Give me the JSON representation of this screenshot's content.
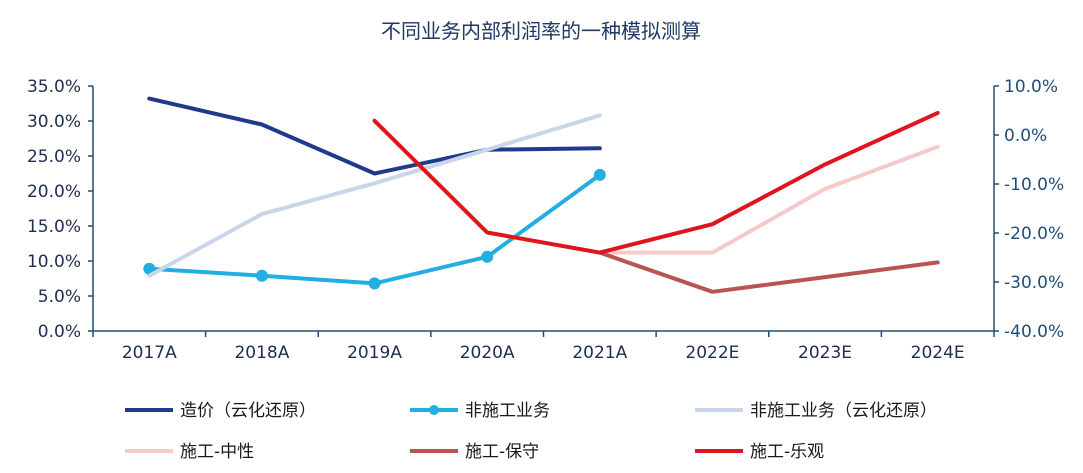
{
  "chart_data": {
    "type": "line",
    "title": "不同业务内部利润率的一种模拟测算",
    "categories": [
      "2017A",
      "2018A",
      "2019A",
      "2020A",
      "2021A",
      "2022E",
      "2023E",
      "2024E"
    ],
    "y_left": {
      "range": [
        0,
        35
      ],
      "ticks": [
        0,
        5,
        10,
        15,
        20,
        25,
        30,
        35
      ],
      "tick_labels": [
        "0.0%",
        "5.0%",
        "10.0%",
        "15.0%",
        "20.0%",
        "25.0%",
        "30.0%",
        "35.0%"
      ]
    },
    "y_right": {
      "range": [
        -40,
        10
      ],
      "ticks": [
        -40,
        -30,
        -20,
        -10,
        0,
        10
      ],
      "tick_labels": [
        "-40.0%",
        "-30.0%",
        "-20.0%",
        "-10.0%",
        "0.0%",
        "10.0%"
      ]
    },
    "series": [
      {
        "name": "造价（云化还原）",
        "axis": "left",
        "color": "#1f3a8a",
        "markers": false,
        "values": [
          33.2,
          29.5,
          22.5,
          25.9,
          26.1,
          null,
          null,
          null
        ]
      },
      {
        "name": "非施工业务",
        "axis": "left",
        "color": "#22aee0",
        "markers": true,
        "values": [
          8.9,
          7.9,
          6.8,
          10.6,
          22.3,
          null,
          null,
          null
        ]
      },
      {
        "name": "非施工业务（云化还原）",
        "axis": "left",
        "color": "#c9d6ea",
        "markers": false,
        "values": [
          7.9,
          16.7,
          21.1,
          25.9,
          30.8,
          null,
          null,
          null
        ]
      },
      {
        "name": "施工-中性",
        "axis": "right",
        "color": "#f6c9cb",
        "markers": false,
        "values": [
          null,
          null,
          null,
          null,
          -24.0,
          -24.0,
          -11.0,
          -2.4
        ]
      },
      {
        "name": "施工-保守",
        "axis": "right",
        "color": "#b85454",
        "markers": false,
        "values": [
          null,
          null,
          null,
          null,
          -24.0,
          -32.0,
          -29.0,
          -26.0
        ]
      },
      {
        "name": "施工-乐观",
        "axis": "right",
        "color": "#e0141c",
        "markers": false,
        "values": [
          null,
          null,
          2.9,
          -19.9,
          -24.0,
          -18.2,
          -6.0,
          4.5
        ]
      }
    ],
    "legend": "bottom",
    "grid": false
  }
}
